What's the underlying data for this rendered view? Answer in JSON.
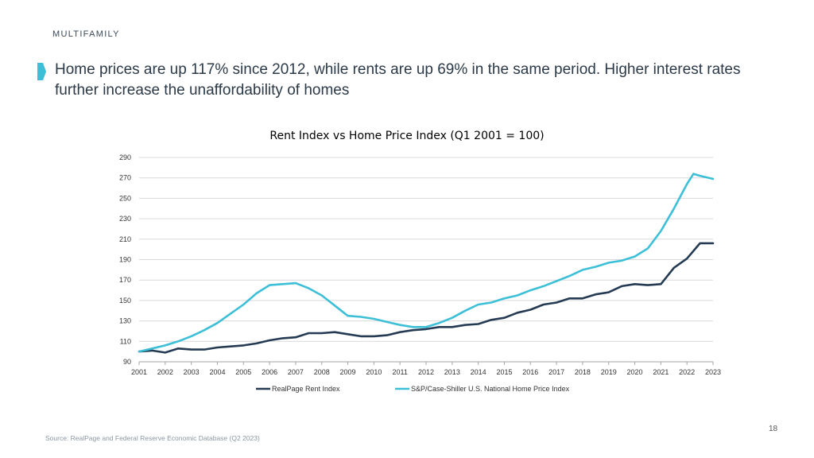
{
  "slide": {
    "section": "MULTIFAMILY",
    "headline": "Home prices are up 117% since 2012, while rents are up 69% in the same period. Higher interest rates further increase the unaffordability of homes",
    "source": "Source: RealPage and Federal Reserve Economic Database (Q2 2023)",
    "page_number": "18",
    "accent_color": "#3dbfd8"
  },
  "chart_data": {
    "type": "line",
    "title": "Rent Index vs Home Price Index (Q1 2001 = 100)",
    "xlabel": "",
    "ylabel": "",
    "xlim": [
      2001,
      2023
    ],
    "ylim": [
      90,
      290
    ],
    "x_ticks": [
      "2001",
      "2002",
      "2003",
      "2004",
      "2005",
      "2006",
      "2007",
      "2008",
      "2009",
      "2010",
      "2011",
      "2012",
      "2013",
      "2014",
      "2015",
      "2016",
      "2017",
      "2018",
      "2019",
      "2020",
      "2021",
      "2022",
      "2023"
    ],
    "y_ticks": [
      90,
      110,
      130,
      150,
      170,
      190,
      210,
      230,
      250,
      270,
      290
    ],
    "grid": "horizontal",
    "legend": "bottom",
    "series": [
      {
        "name": "RealPage Rent Index",
        "color": "#243b53",
        "x": [
          2001,
          2001.5,
          2002,
          2002.5,
          2003,
          2003.5,
          2004,
          2004.5,
          2005,
          2005.5,
          2006,
          2006.5,
          2007,
          2007.5,
          2008,
          2008.5,
          2009,
          2009.5,
          2010,
          2010.5,
          2011,
          2011.5,
          2012,
          2012.5,
          2013,
          2013.5,
          2014,
          2014.5,
          2015,
          2015.5,
          2016,
          2016.5,
          2017,
          2017.5,
          2018,
          2018.5,
          2019,
          2019.5,
          2020,
          2020.5,
          2021,
          2021.5,
          2022,
          2022.5,
          2023
        ],
        "values": [
          100,
          101,
          99,
          103,
          102,
          102,
          104,
          105,
          106,
          108,
          111,
          113,
          114,
          118,
          118,
          119,
          117,
          115,
          115,
          116,
          119,
          121,
          122,
          124,
          124,
          126,
          127,
          131,
          133,
          138,
          141,
          146,
          148,
          152,
          152,
          156,
          158,
          164,
          166,
          165,
          166,
          182,
          191,
          206,
          206
        ]
      },
      {
        "name": "S&P/Case-Shiller U.S. National Home Price Index",
        "color": "#3dbfd8",
        "x": [
          2001,
          2001.5,
          2002,
          2002.5,
          2003,
          2003.5,
          2004,
          2004.5,
          2005,
          2005.5,
          2006,
          2006.5,
          2007,
          2007.5,
          2008,
          2008.5,
          2009,
          2009.5,
          2010,
          2010.5,
          2011,
          2011.5,
          2012,
          2012.5,
          2013,
          2013.5,
          2014,
          2014.5,
          2015,
          2015.5,
          2016,
          2016.5,
          2017,
          2017.5,
          2018,
          2018.5,
          2019,
          2019.5,
          2020,
          2020.5,
          2021,
          2021.5,
          2022,
          2022.25,
          2022.5,
          2023
        ],
        "values": [
          100,
          103,
          106,
          110,
          115,
          121,
          128,
          137,
          146,
          157,
          165,
          166,
          167,
          162,
          155,
          145,
          135,
          134,
          132,
          129,
          126,
          124,
          124,
          128,
          133,
          140,
          146,
          148,
          152,
          155,
          160,
          164,
          169,
          174,
          180,
          183,
          187,
          189,
          193,
          201,
          218,
          240,
          264,
          274,
          272,
          269
        ]
      }
    ]
  }
}
